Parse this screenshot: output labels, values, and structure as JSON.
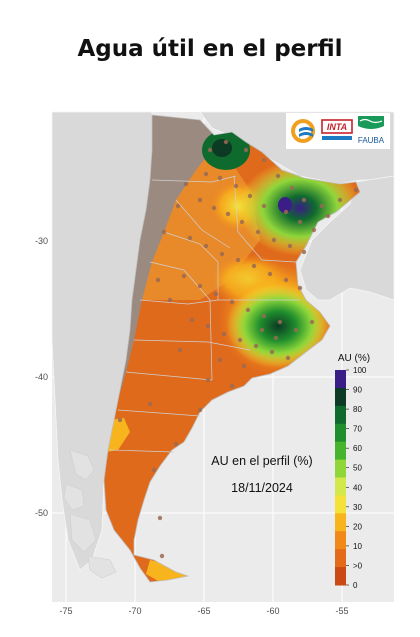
{
  "title": "Agua útil en el perfil",
  "map": {
    "annotation_title": "AU en el perfil (%)",
    "date": "18/11/2024",
    "logos": {
      "inta": "INTA",
      "fauba": "FAUBA"
    },
    "axes": {
      "x_ticks": [
        "-75",
        "-70",
        "-65",
        "-60",
        "-55"
      ],
      "y_ticks": [
        "-30",
        "-40",
        "-50"
      ]
    },
    "colors": {
      "panel_bg": "#ebebeb",
      "grid": "#ffffff",
      "neighbor_land": "#d9d9d9",
      "no_data_land": "#9a8a7f",
      "dry": "#e06a1c",
      "station_dot": "#9a6a52"
    }
  },
  "legend": {
    "title": "AU (%)",
    "levels": [
      "100",
      "90",
      "80",
      "70",
      "60",
      "50",
      "40",
      "30",
      "20",
      "10",
      ">0",
      "0"
    ],
    "colors": [
      "#3a1d86",
      "#0c3a25",
      "#0f6a2e",
      "#1f8e2d",
      "#46b52d",
      "#8ed63a",
      "#d3e84a",
      "#f4e23a",
      "#f8b41c",
      "#f1891a",
      "#e36a1a",
      "#c94a12"
    ]
  }
}
